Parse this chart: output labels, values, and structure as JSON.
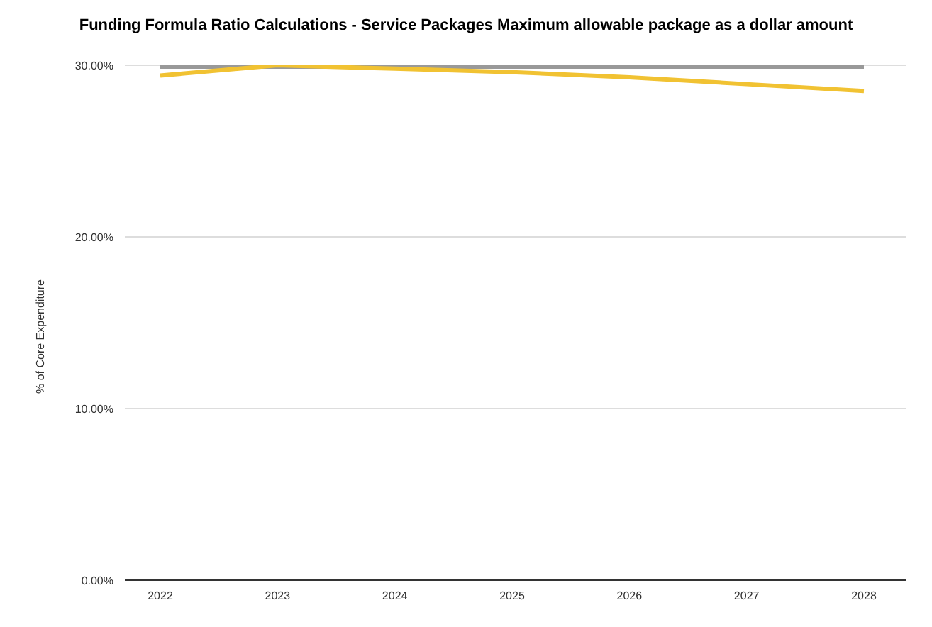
{
  "chart_data": {
    "type": "line",
    "title": "Funding Formula Ratio Calculations - Service Packages Maximum allowable package as a dollar amount",
    "ylabel": "% of Core Expenditure",
    "categories": [
      "2022",
      "2023",
      "2024",
      "2025",
      "2026",
      "2027",
      "2028"
    ],
    "series": [
      {
        "color": "#999999",
        "values": [
          30,
          30,
          30,
          30,
          30,
          30,
          30
        ]
      },
      {
        "color": "#f1c232",
        "values": [
          29.4,
          30,
          29.8,
          29.6,
          29.3,
          28.9,
          28.5
        ]
      }
    ],
    "ylim": [
      0,
      30
    ],
    "yticks": [
      {
        "value": 0,
        "label": "0.00%"
      },
      {
        "value": 10,
        "label": "10.00%"
      },
      {
        "value": 20,
        "label": "20.00%"
      },
      {
        "value": 30,
        "label": "30.00%"
      }
    ],
    "grid": "y",
    "legend": false,
    "marker": "none",
    "line_style": "solid"
  }
}
